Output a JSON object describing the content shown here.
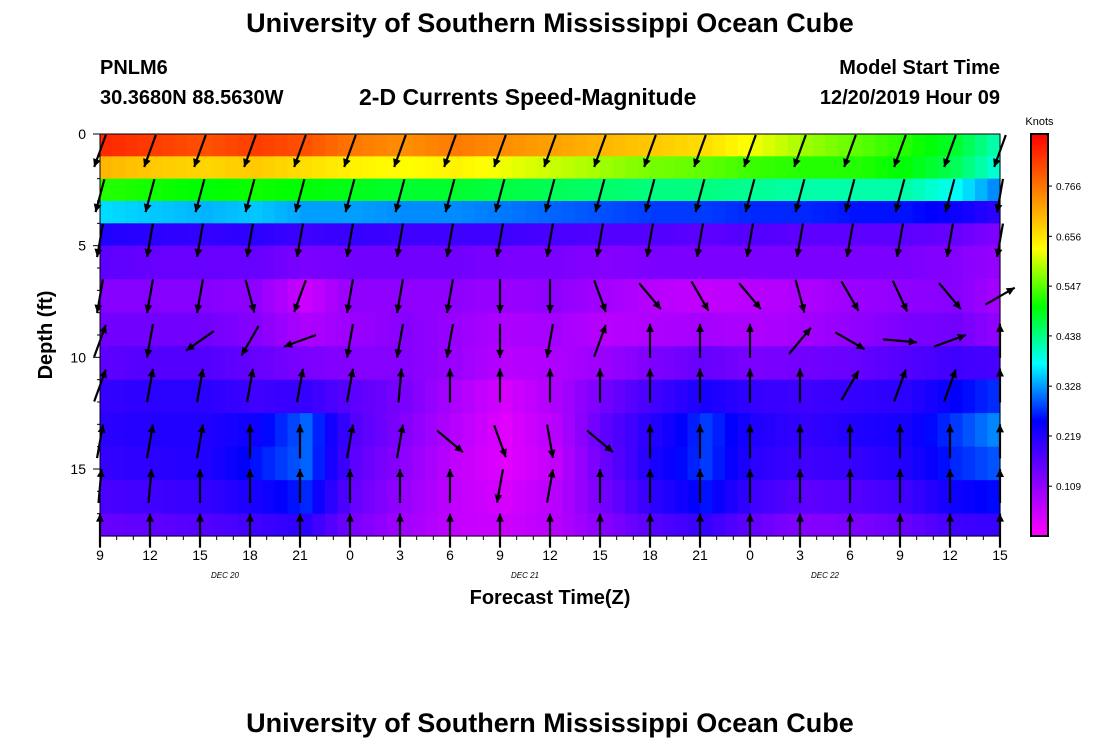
{
  "page": {
    "title_top": "University of Southern Mississippi Ocean Cube",
    "title_bottom": "University of Southern Mississippi Ocean Cube",
    "station": "PNLM6",
    "coordinates": "30.3680N 88.5630W",
    "subtitle": "2-D Currents Speed-Magnitude",
    "model_start_label": "Model Start Time",
    "model_start_value": "12/20/2019 Hour 09"
  },
  "chart_data": {
    "type": "heatmap",
    "title": "2-D Currents Speed-Magnitude",
    "xlabel": "Forecast Time(Z)",
    "ylabel": "Depth (ft)",
    "x_ticks": [
      "9",
      "12",
      "15",
      "18",
      "21",
      "0",
      "3",
      "6",
      "9",
      "12",
      "15",
      "18",
      "21",
      "0",
      "3",
      "6",
      "9",
      "12",
      "15"
    ],
    "date_labels": [
      {
        "text": "DEC 20",
        "tick_index": 2.5
      },
      {
        "text": "DEC 21",
        "tick_index": 8.5
      },
      {
        "text": "DEC 22",
        "tick_index": 14.5
      }
    ],
    "y_ticks": [
      0,
      5,
      10,
      15
    ],
    "ylim": [
      0,
      18
    ],
    "y_inverted": true,
    "x_range_hours": [
      0,
      54
    ],
    "colorbar": {
      "unit": "Knots",
      "labels": [
        "0.766",
        "0.656",
        "0.547",
        "0.438",
        "0.328",
        "0.219",
        "0.109"
      ],
      "label_values": [
        0.766,
        0.656,
        0.547,
        0.438,
        0.328,
        0.219,
        0.109
      ],
      "min": 0.0,
      "max": 0.88,
      "colors": [
        "#ff00ff",
        "#8000ff",
        "#0000ff",
        "#00ffff",
        "#00ff00",
        "#ffff00",
        "#ff8000",
        "#ff0000"
      ]
    },
    "depth_layers": [
      {
        "depth_ft": 0.0,
        "speed": [
          0.84,
          0.82,
          0.8,
          0.82,
          0.8,
          0.76,
          0.74,
          0.76,
          0.74,
          0.72,
          0.7,
          0.68,
          0.66,
          0.62,
          0.58,
          0.55,
          0.52,
          0.48,
          0.4
        ]
      },
      {
        "depth_ft": 1.0,
        "speed": [
          0.7,
          0.68,
          0.67,
          0.68,
          0.66,
          0.64,
          0.63,
          0.64,
          0.62,
          0.6,
          0.58,
          0.56,
          0.55,
          0.53,
          0.52,
          0.52,
          0.5,
          0.46,
          0.38
        ]
      },
      {
        "depth_ft": 2.0,
        "speed": [
          0.52,
          0.51,
          0.5,
          0.51,
          0.5,
          0.49,
          0.48,
          0.48,
          0.47,
          0.46,
          0.45,
          0.44,
          0.44,
          0.43,
          0.42,
          0.42,
          0.42,
          0.38,
          0.3
        ]
      },
      {
        "depth_ft": 3.0,
        "speed": [
          0.36,
          0.35,
          0.34,
          0.35,
          0.33,
          0.33,
          0.32,
          0.32,
          0.31,
          0.3,
          0.29,
          0.28,
          0.28,
          0.27,
          0.27,
          0.26,
          0.26,
          0.24,
          0.2
        ]
      },
      {
        "depth_ft": 4.0,
        "speed": [
          0.22,
          0.21,
          0.2,
          0.21,
          0.19,
          0.2,
          0.19,
          0.19,
          0.19,
          0.18,
          0.17,
          0.17,
          0.16,
          0.17,
          0.16,
          0.16,
          0.16,
          0.15,
          0.12
        ]
      },
      {
        "depth_ft": 5.0,
        "speed": [
          0.16,
          0.15,
          0.15,
          0.15,
          0.13,
          0.14,
          0.14,
          0.14,
          0.13,
          0.13,
          0.12,
          0.13,
          0.13,
          0.13,
          0.13,
          0.13,
          0.13,
          0.12,
          0.1
        ]
      },
      {
        "depth_ft": 6.5,
        "speed": [
          0.12,
          0.12,
          0.12,
          0.11,
          0.05,
          0.11,
          0.11,
          0.11,
          0.1,
          0.11,
          0.09,
          0.07,
          0.06,
          0.07,
          0.08,
          0.1,
          0.11,
          0.12,
          0.08
        ]
      },
      {
        "depth_ft": 8.0,
        "speed": [
          0.14,
          0.14,
          0.14,
          0.12,
          0.08,
          0.1,
          0.12,
          0.1,
          0.08,
          0.09,
          0.07,
          0.08,
          0.09,
          0.08,
          0.09,
          0.11,
          0.13,
          0.14,
          0.1
        ]
      },
      {
        "depth_ft": 9.5,
        "speed": [
          0.16,
          0.17,
          0.17,
          0.15,
          0.13,
          0.12,
          0.12,
          0.1,
          0.07,
          0.08,
          0.1,
          0.13,
          0.15,
          0.13,
          0.14,
          0.15,
          0.17,
          0.19,
          0.18
        ]
      },
      {
        "depth_ft": 11.0,
        "speed": [
          0.2,
          0.21,
          0.21,
          0.19,
          0.2,
          0.16,
          0.13,
          0.08,
          0.04,
          0.08,
          0.14,
          0.19,
          0.23,
          0.2,
          0.19,
          0.2,
          0.21,
          0.25,
          0.28
        ]
      },
      {
        "depth_ft": 12.5,
        "speed": [
          0.21,
          0.22,
          0.22,
          0.24,
          0.3,
          0.17,
          0.12,
          0.07,
          0.03,
          0.07,
          0.16,
          0.22,
          0.28,
          0.22,
          0.2,
          0.22,
          0.23,
          0.28,
          0.33
        ]
      },
      {
        "depth_ft": 14.0,
        "speed": [
          0.2,
          0.21,
          0.22,
          0.26,
          0.3,
          0.16,
          0.11,
          0.06,
          0.03,
          0.06,
          0.15,
          0.23,
          0.28,
          0.21,
          0.19,
          0.2,
          0.22,
          0.27,
          0.3
        ]
      },
      {
        "depth_ft": 15.5,
        "speed": [
          0.18,
          0.19,
          0.2,
          0.23,
          0.27,
          0.15,
          0.1,
          0.06,
          0.04,
          0.07,
          0.14,
          0.21,
          0.26,
          0.19,
          0.16,
          0.17,
          0.19,
          0.24,
          0.26
        ]
      },
      {
        "depth_ft": 17.0,
        "speed": [
          0.15,
          0.16,
          0.17,
          0.19,
          0.21,
          0.13,
          0.09,
          0.06,
          0.05,
          0.07,
          0.12,
          0.17,
          0.2,
          0.15,
          0.12,
          0.13,
          0.15,
          0.19,
          0.2
        ]
      },
      {
        "depth_ft": 18.0,
        "speed": [
          0.13,
          0.14,
          0.14,
          0.15,
          0.17,
          0.11,
          0.08,
          0.06,
          0.05,
          0.07,
          0.1,
          0.14,
          0.16,
          0.12,
          0.1,
          0.11,
          0.12,
          0.16,
          0.17
        ]
      }
    ],
    "vector_columns_hours": [
      0,
      3,
      6,
      9,
      12,
      15,
      18,
      21,
      24,
      27,
      30,
      33,
      36,
      39,
      42,
      45,
      48,
      51,
      54
    ],
    "vector_depths_ft": [
      0,
      2,
      4,
      6.5,
      8.5,
      10.5,
      13,
      15,
      17
    ],
    "vector_angles_deg": [
      [
        200,
        200,
        200,
        200,
        200,
        200,
        200,
        200,
        200,
        200,
        200,
        200,
        200,
        200,
        200,
        200,
        200,
        200,
        200
      ],
      [
        195,
        195,
        195,
        195,
        195,
        195,
        195,
        195,
        195,
        195,
        195,
        195,
        195,
        195,
        195,
        195,
        195,
        195,
        190
      ],
      [
        190,
        190,
        190,
        190,
        190,
        190,
        190,
        190,
        190,
        190,
        190,
        190,
        190,
        190,
        190,
        190,
        190,
        190,
        190
      ],
      [
        190,
        190,
        190,
        165,
        200,
        190,
        190,
        190,
        180,
        180,
        160,
        140,
        150,
        140,
        165,
        150,
        155,
        140,
        60
      ],
      [
        20,
        190,
        235,
        210,
        250,
        190,
        190,
        190,
        180,
        190,
        20,
        0,
        0,
        0,
        40,
        120,
        95,
        70,
        0
      ],
      [
        20,
        10,
        10,
        10,
        10,
        10,
        5,
        0,
        0,
        0,
        0,
        0,
        0,
        0,
        0,
        30,
        20,
        20,
        0
      ],
      [
        10,
        10,
        10,
        0,
        0,
        10,
        10,
        130,
        160,
        170,
        130,
        0,
        0,
        0,
        0,
        0,
        0,
        0,
        0
      ],
      [
        5,
        5,
        0,
        0,
        0,
        0,
        0,
        0,
        190,
        10,
        0,
        0,
        0,
        0,
        0,
        0,
        0,
        0,
        0
      ],
      [
        0,
        0,
        0,
        0,
        0,
        0,
        0,
        0,
        0,
        0,
        0,
        0,
        0,
        0,
        0,
        0,
        0,
        0,
        0
      ]
    ]
  }
}
